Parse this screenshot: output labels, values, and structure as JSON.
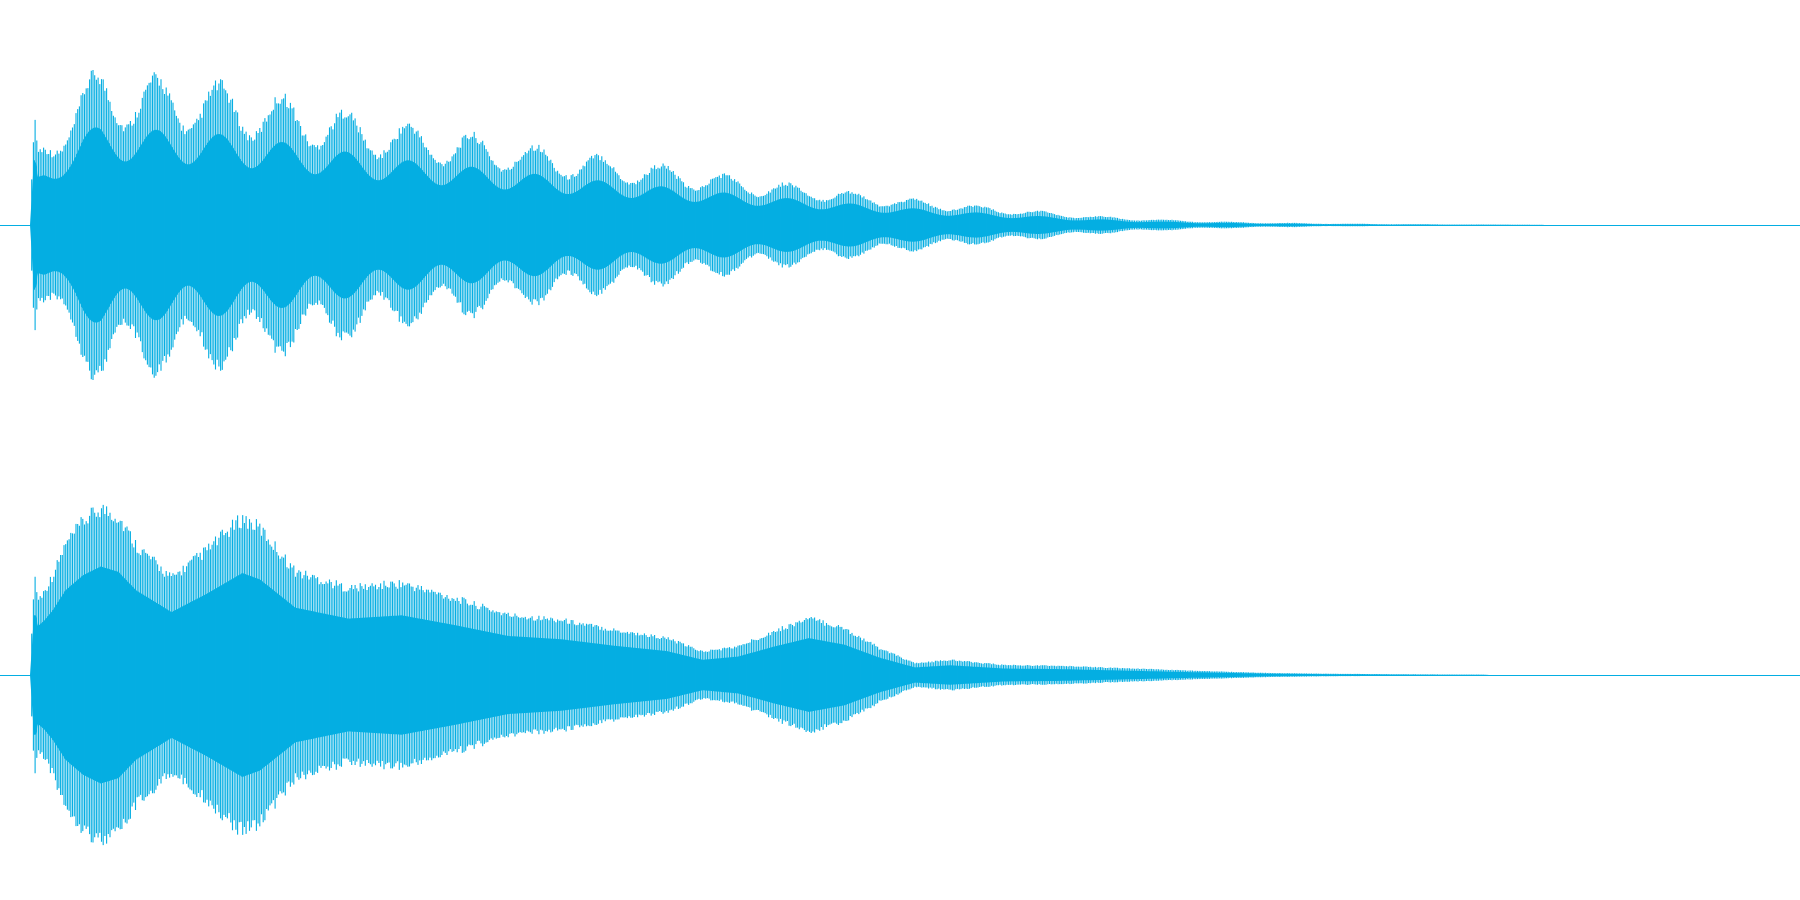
{
  "chart_data": {
    "type": "area",
    "title": "",
    "xlabel": "",
    "ylabel": "",
    "grid": false,
    "legend": "none",
    "color": "#05aee2",
    "ylim": [
      -1,
      1
    ],
    "xlim": [
      0,
      1
    ],
    "series": [
      {
        "channel": 1,
        "carrier_cycles": 520,
        "envelope": {
          "x": [
            0.0,
            0.0025,
            0.0045,
            0.008,
            0.013,
            0.02,
            0.03,
            0.04,
            0.05,
            0.06,
            0.08,
            0.1,
            0.13,
            0.16,
            0.19,
            0.22,
            0.25,
            0.28,
            0.3,
            0.33,
            0.36,
            0.4,
            0.44,
            0.48,
            0.52,
            0.56,
            0.6,
            0.64,
            0.68,
            0.72,
            0.76,
            0.8,
            0.84,
            0.86
          ],
          "y": [
            0.0,
            0.74,
            0.5,
            0.58,
            0.65,
            0.78,
            0.92,
            1.0,
            0.98,
            0.96,
            0.94,
            0.92,
            0.86,
            0.78,
            0.7,
            0.63,
            0.58,
            0.52,
            0.48,
            0.43,
            0.38,
            0.31,
            0.25,
            0.19,
            0.14,
            0.1,
            0.06,
            0.035,
            0.02,
            0.012,
            0.007,
            0.004,
            0.002,
            0.0
          ]
        },
        "beat_cycles": 28,
        "beat_depth": 0.35
      },
      {
        "channel": 2,
        "carrier_cycles": 520,
        "envelope": {
          "x": [
            0.0,
            0.0025,
            0.0045,
            0.008,
            0.013,
            0.02,
            0.03,
            0.04,
            0.05,
            0.06,
            0.08,
            0.1,
            0.12,
            0.13,
            0.15,
            0.18,
            0.21,
            0.24,
            0.27,
            0.3,
            0.33,
            0.36,
            0.38,
            0.4,
            0.42,
            0.44,
            0.46,
            0.48,
            0.5,
            0.52,
            0.55,
            0.58,
            0.62,
            0.66,
            0.7,
            0.74,
            0.78,
            0.82,
            0.825
          ],
          "y": [
            0.0,
            0.62,
            0.45,
            0.5,
            0.6,
            0.78,
            0.92,
            1.0,
            0.95,
            0.78,
            0.58,
            0.75,
            0.94,
            0.88,
            0.62,
            0.52,
            0.55,
            0.46,
            0.36,
            0.33,
            0.27,
            0.22,
            0.14,
            0.17,
            0.26,
            0.34,
            0.28,
            0.16,
            0.07,
            0.09,
            0.06,
            0.055,
            0.04,
            0.025,
            0.012,
            0.007,
            0.004,
            0.002,
            0.0
          ]
        },
        "beat_cycles": 0,
        "beat_depth": 0.0
      }
    ]
  }
}
